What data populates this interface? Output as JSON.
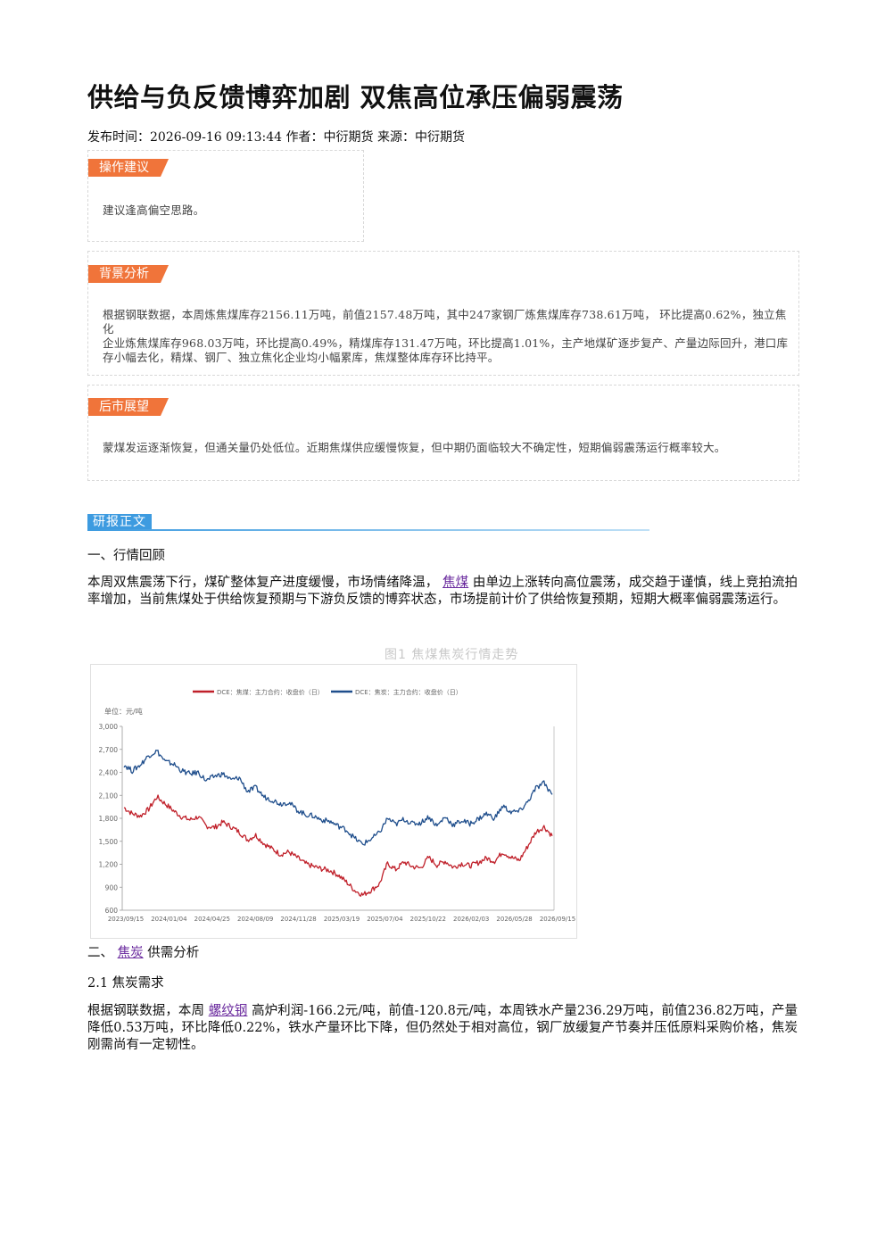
{
  "article": {
    "title": "供给与负反馈博弈加剧 双焦高位承压偏弱震荡",
    "meta": "发布时间：2026-09-16 09:13:44 作者：中衍期货 来源：中衍期货"
  },
  "boxes": {
    "advice": {
      "tag": "操作建议",
      "text": "建议逢高偏空思路。"
    },
    "background": {
      "tag": "背景分析",
      "lines": [
        "根据钢联数据，本周炼焦煤库存2156.11万吨，前值2157.48万吨，其中247家钢厂炼焦煤库存738.61万吨， 环比提高0.62%，独立焦化",
        "企业炼焦煤库存968.03万吨，环比提高0.49%，精煤库存131.47万吨，环比提高1.01%，主产地煤矿逐步复产、产量边际回升，港口库",
        "存小幅去化，精煤、钢厂、独立焦化企业均小幅累库，焦煤整体库存环比持平。"
      ]
    },
    "outlook": {
      "tag": "后市展望",
      "text": "蒙煤发运逐渐恢复，但通关量仍处低位。近期焦煤供应缓慢恢复，但中期仍面临较大不确定性，短期偏弱震荡运行概率较大。"
    }
  },
  "body": {
    "section_tag": "研报正文",
    "h1": "一、行情回顾",
    "p1": {
      "before": "本周双焦震荡下行，煤矿整体复产进度缓慢，市场情绪降温，",
      "link": "焦煤",
      "after": "由单边上涨转向高位震荡，成交趋于谨慎，线上竞拍流拍率增加，当前焦煤处于供给恢复预期与下游负反馈的博弈状态，市场提前计价了供给恢复预期，短期大概率偏弱震荡运行。"
    },
    "figure_title": "图1 焦煤焦炭行情走势",
    "h2": {
      "prefix": "二、",
      "link": "焦炭",
      "suffix": "供需分析"
    },
    "h21": "2.1 焦炭需求",
    "p2": {
      "before": "根据钢联数据，本周",
      "link": "螺纹钢",
      "after": "高炉利润-166.2元/吨，前值-120.8元/吨，本周铁水产量236.29万吨，前值236.82万吨，产量降低0.53万吨，环比降低0.22%，铁水产量环比下降，但仍然处于相对高位，钢厂放缓复产节奏并压低原料采购价格，焦炭刚需尚有一定韧性。"
    }
  },
  "chart_data": {
    "type": "line",
    "unit_label": "单位：元/吨",
    "ylim": [
      600,
      3000
    ],
    "yticks": [
      600,
      900,
      1200,
      1500,
      1800,
      2100,
      2400,
      2700,
      3000
    ],
    "ytick_labels": [
      "600",
      "900",
      "1,200",
      "1,500",
      "1,800",
      "2,100",
      "2,400",
      "2,700",
      "3,000"
    ],
    "xtick_labels": [
      "2023/09/15",
      "2024/01/04",
      "2024/04/25",
      "2024/08/09",
      "2024/11/28",
      "2025/03/19",
      "2025/07/04",
      "2025/10/22",
      "2026/02/03",
      "2026/05/28",
      "2026/09/15"
    ],
    "series": [
      {
        "name": "DCE：焦煤：主力合约：收盘价（日）",
        "color": "#c0202a",
        "values": [
          1940,
          1860,
          1830,
          1920,
          2080,
          1990,
          1900,
          1820,
          1780,
          1820,
          1700,
          1680,
          1750,
          1690,
          1620,
          1520,
          1580,
          1470,
          1400,
          1330,
          1360,
          1290,
          1210,
          1170,
          1140,
          1120,
          1060,
          970,
          860,
          800,
          860,
          940,
          1210,
          1130,
          1230,
          1170,
          1150,
          1290,
          1190,
          1240,
          1160,
          1210,
          1180,
          1220,
          1280,
          1240,
          1360,
          1290,
          1250,
          1430,
          1620,
          1690,
          1570
        ]
      },
      {
        "name": "DCE：焦炭：主力合约：收盘价（日）",
        "color": "#1f4e8c",
        "values": [
          2500,
          2420,
          2500,
          2620,
          2680,
          2540,
          2510,
          2420,
          2380,
          2400,
          2290,
          2350,
          2380,
          2300,
          2330,
          2150,
          2200,
          2080,
          2040,
          1990,
          2010,
          1910,
          1850,
          1830,
          1780,
          1760,
          1700,
          1650,
          1540,
          1460,
          1530,
          1610,
          1800,
          1720,
          1790,
          1730,
          1740,
          1820,
          1700,
          1820,
          1710,
          1770,
          1730,
          1790,
          1860,
          1800,
          1960,
          1880,
          1890,
          2010,
          2190,
          2260,
          2110
        ]
      }
    ]
  }
}
